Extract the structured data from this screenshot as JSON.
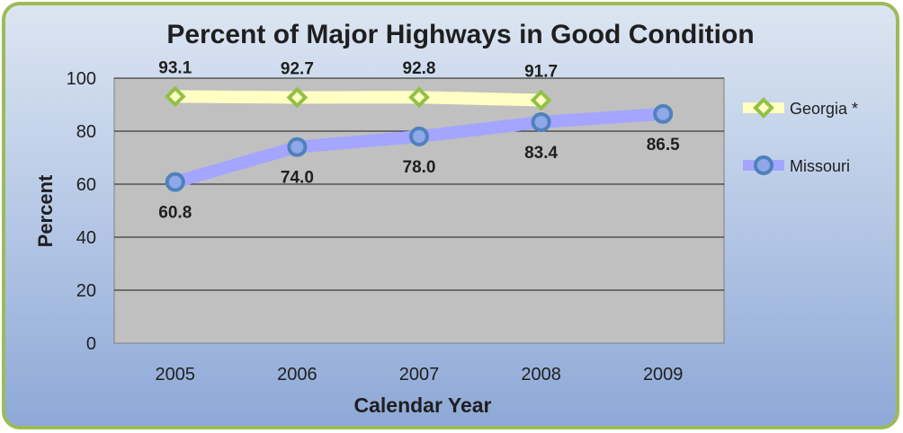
{
  "chart_data": {
    "type": "line",
    "title": "Percent of Major Highways in Good Condition",
    "xlabel": "Calendar Year",
    "ylabel": "Percent",
    "categories": [
      "2005",
      "2006",
      "2007",
      "2008",
      "2009"
    ],
    "ylim": [
      0,
      100
    ],
    "yticks": [
      0,
      20,
      40,
      60,
      80,
      100
    ],
    "grid": true,
    "legend_position": "right",
    "series": [
      {
        "name": "Georgia *",
        "values": [
          93.1,
          92.7,
          92.8,
          91.7,
          null
        ],
        "labels": [
          "93.1",
          "92.7",
          "92.8",
          "91.7",
          null
        ],
        "line_color": "#FFFFC4",
        "marker": "diamond",
        "marker_color": "#92C045",
        "label_position": "above"
      },
      {
        "name": "Missouri",
        "values": [
          60.8,
          74.0,
          78.0,
          83.4,
          86.5
        ],
        "labels": [
          "60.8",
          "74.0",
          "78.0",
          "83.4",
          "86.5"
        ],
        "line_color": "#A4A5FF",
        "marker": "circle",
        "marker_color": "#4F81BD",
        "label_position": "below"
      }
    ],
    "colors": {
      "frame_border": "#9BBB59",
      "background_top": "#DCE6F2",
      "background_bottom": "#8EA8D6",
      "plot_area": "#C0C0C0",
      "text": "#1F1F1F"
    }
  }
}
